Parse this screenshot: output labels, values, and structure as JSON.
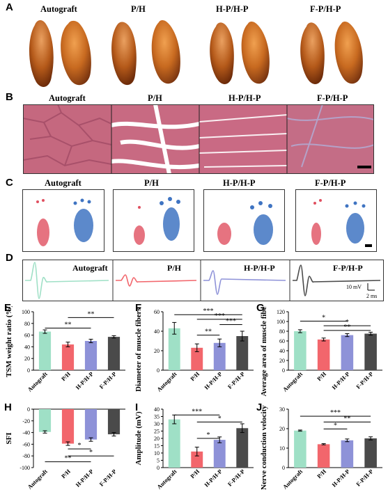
{
  "panels": {
    "A": "A",
    "B": "B",
    "C": "C",
    "D": "D",
    "E": "E",
    "F": "F",
    "G": "G",
    "H": "H",
    "I": "I",
    "J": "J"
  },
  "groups": [
    "Autograft",
    "P/H",
    "H-P/H-P",
    "F-P/H-P"
  ],
  "colors": {
    "Autograft": "#9fe0c6",
    "P/H": "#f2666c",
    "H-P/H-P": "#8e92d8",
    "F-P/H-P": "#4a4a4a"
  },
  "scale_labels": {
    "voltage": "10 mV",
    "time": "2 ms"
  },
  "chart_data": [
    {
      "id": "E",
      "type": "bar",
      "categories": [
        "Autograft",
        "P/H",
        "H-P/H-P",
        "F-P/H-P"
      ],
      "values": [
        66,
        44,
        50,
        57
      ],
      "errors": [
        3,
        4,
        3,
        2
      ],
      "ylabel": "TSM weight ratio (%)",
      "ylim": [
        0,
        100
      ],
      "yticks": [
        0,
        20,
        40,
        60,
        80,
        100
      ],
      "sig": [
        "**",
        "**"
      ]
    },
    {
      "id": "F",
      "type": "bar",
      "categories": [
        "Autograft",
        "P/H",
        "H-P/H-P",
        "F-P/H-P"
      ],
      "values": [
        43,
        23,
        28,
        35
      ],
      "errors": [
        6,
        4,
        4,
        5
      ],
      "ylabel": "Diameter of muscle fibers (μm)",
      "ylim": [
        0,
        60
      ],
      "yticks": [
        0,
        20,
        40,
        60
      ],
      "sig": [
        "***",
        "***",
        "***",
        "**"
      ]
    },
    {
      "id": "G",
      "type": "bar",
      "categories": [
        "Autograft",
        "P/H",
        "H-P/H-P",
        "F-P/H-P"
      ],
      "values": [
        80,
        63,
        72,
        75
      ],
      "errors": [
        3,
        3,
        3,
        3
      ],
      "ylabel": "Average area of muscle fibers (%)",
      "ylim": [
        0,
        120
      ],
      "yticks": [
        0,
        20,
        40,
        60,
        80,
        100,
        120
      ],
      "sig": [
        "*",
        "*",
        "**"
      ]
    },
    {
      "id": "H",
      "type": "bar",
      "categories": [
        "Autograft",
        "P/H",
        "H-P/H-P",
        "F-P/H-P"
      ],
      "values": [
        -39,
        -59,
        -52,
        -43
      ],
      "errors": [
        2,
        3,
        3,
        3
      ],
      "ylabel": "SFI",
      "ylim": [
        -100,
        0
      ],
      "yticks": [
        0,
        -20,
        -40,
        -60,
        -80,
        -100
      ],
      "sig": [
        "**",
        "*",
        "*"
      ]
    },
    {
      "id": "I",
      "type": "bar",
      "categories": [
        "Autograft",
        "P/H",
        "H-P/H-P",
        "F-P/H-P"
      ],
      "values": [
        33,
        11,
        19,
        27
      ],
      "errors": [
        3,
        3,
        2,
        3
      ],
      "ylabel": "Amplitude (mV)",
      "ylim": [
        0,
        40
      ],
      "yticks": [
        0,
        5,
        10,
        15,
        20,
        25,
        30,
        35,
        40
      ],
      "sig": [
        "***",
        "*",
        "*"
      ]
    },
    {
      "id": "J",
      "type": "bar",
      "categories": [
        "Autograft",
        "P/H",
        "H-P/H-P",
        "F-P/H-P"
      ],
      "values": [
        19,
        12,
        14,
        15
      ],
      "errors": [
        0.3,
        0.3,
        0.7,
        0.8
      ],
      "ylabel": "Nerve conduction velocity (m/s)",
      "ylim": [
        0,
        30
      ],
      "yticks": [
        0,
        10,
        20,
        30
      ],
      "sig": [
        "***",
        "**",
        "*"
      ]
    }
  ]
}
